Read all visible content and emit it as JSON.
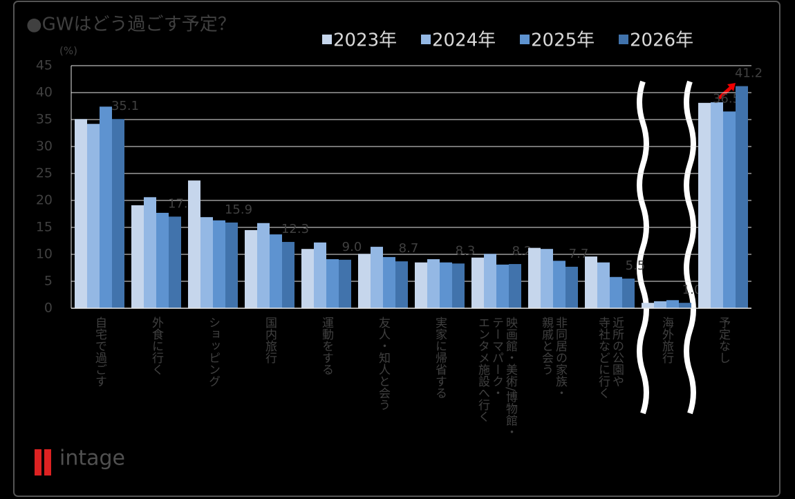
{
  "chart_data": {
    "type": "bar",
    "title": "●GWはどう過ごす予定？",
    "y_unit": "(%)",
    "logo": "intage",
    "categories": [
      "自宅で過ごす",
      "外食に行く",
      "ショッピング",
      "国内旅行",
      "運動をする",
      "友人・知人と会う",
      "実家に帰省する",
      "映画館・美術/博物館・\nテーマパーク・\nエンタメ施設へ行く",
      "非同居の家族・\n親戚と会う",
      "近所の公園や\n寺社などに行く",
      "海外旅行",
      "予定なし"
    ],
    "series": [
      {
        "name": "2023年",
        "color": "#c6d6ec",
        "values": [
          35.1,
          19.1,
          23.7,
          14.5,
          11.0,
          10.1,
          8.5,
          9.4,
          11.2,
          9.6,
          1.0,
          38.1
        ]
      },
      {
        "name": "2024年",
        "color": "#94b8e4",
        "values": [
          34.2,
          20.6,
          16.9,
          15.8,
          12.2,
          11.4,
          9.1,
          10.1,
          11.0,
          8.5,
          1.3,
          38.2
        ]
      },
      {
        "name": "2025年",
        "color": "#5e93d0",
        "values": [
          37.4,
          17.7,
          16.3,
          13.7,
          9.1,
          9.5,
          8.5,
          8.1,
          8.8,
          5.8,
          1.5,
          36.5
        ],
        "value_labels": [
          null,
          null,
          null,
          null,
          null,
          null,
          null,
          null,
          null,
          null,
          null,
          "36.5"
        ]
      },
      {
        "name": "2026年",
        "color": "#4173ac",
        "values": [
          35.1,
          17.0,
          15.9,
          12.3,
          9.0,
          8.7,
          8.3,
          8.2,
          7.7,
          5.5,
          1.0,
          41.2
        ],
        "value_labels": [
          "35.1",
          "17.0",
          "15.9",
          "12.3",
          "9.0",
          "8.7",
          "8.3",
          "8.2",
          "7.7",
          "5.5",
          "1.0",
          "41.2"
        ]
      }
    ],
    "ylim": [
      0,
      45
    ],
    "yticks": [
      0,
      5,
      10,
      15,
      20,
      25,
      30,
      35,
      40,
      45
    ],
    "grid": true
  }
}
